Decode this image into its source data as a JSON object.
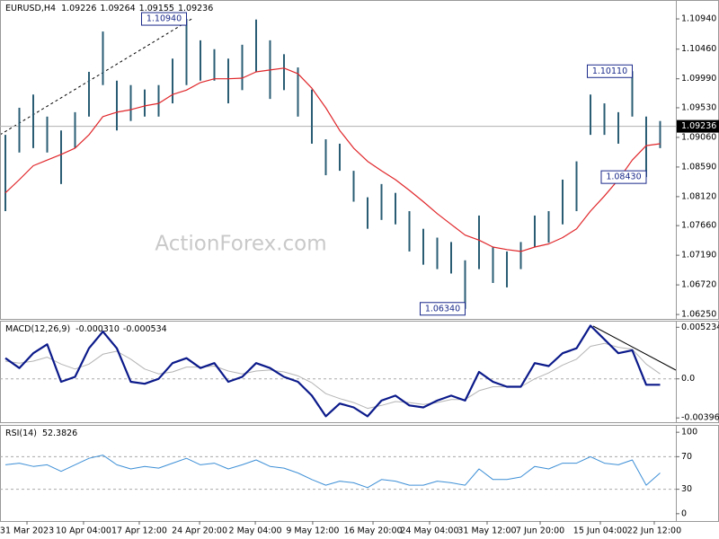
{
  "chart_data": [
    {
      "type": "ohlc",
      "title": "EURUSD,H4",
      "header_values": [
        1.09226,
        1.09264,
        1.09155,
        1.09236
      ],
      "current_price": 1.09236,
      "watermark": "ActionForex.com",
      "bar_color": "#2a5d74",
      "x": [
        0,
        1,
        2,
        3,
        4,
        5,
        6,
        7,
        8,
        9,
        10,
        11,
        12,
        13,
        14,
        15,
        16,
        17,
        18,
        19,
        20,
        21,
        22,
        23,
        24,
        25,
        26,
        27,
        28,
        29,
        30,
        31,
        32,
        33,
        34,
        35,
        36,
        37,
        38,
        39,
        40,
        41,
        42,
        43,
        44,
        45,
        46,
        47
      ],
      "highs": [
        1.091,
        1.0953,
        1.0974,
        1.0939,
        1.0917,
        1.0946,
        1.101,
        1.1074,
        1.0996,
        1.0989,
        1.0982,
        1.0989,
        1.1031,
        1.1094,
        1.106,
        1.1046,
        1.1031,
        1.1053,
        1.1093,
        1.106,
        1.1038,
        1.1017,
        1.0982,
        1.0903,
        1.0896,
        1.0853,
        1.0811,
        1.0832,
        1.0818,
        1.0789,
        1.0761,
        1.0747,
        1.074,
        1.0711,
        1.0782,
        1.0732,
        1.0725,
        1.074,
        1.0782,
        1.0789,
        1.0839,
        1.0868,
        1.0974,
        1.096,
        1.0946,
        1.1011,
        1.0939,
        1.0932
      ],
      "lows": [
        1.0789,
        1.0882,
        1.0889,
        1.0882,
        1.0832,
        1.0889,
        1.0939,
        1.0989,
        1.0917,
        1.0932,
        1.0939,
        1.0939,
        1.096,
        1.0989,
        1.0996,
        1.0996,
        1.096,
        1.0981,
        1.101,
        1.0967,
        1.0981,
        1.0939,
        1.0896,
        1.0846,
        1.0853,
        1.0804,
        1.0761,
        1.0775,
        1.0768,
        1.0725,
        1.0704,
        1.0697,
        1.069,
        1.0634,
        1.0697,
        1.0675,
        1.0668,
        1.0697,
        1.0732,
        1.0739,
        1.0768,
        1.0789,
        1.091,
        1.091,
        1.0896,
        1.0939,
        1.0843,
        1.0889
      ],
      "ma": {
        "color": "#e0262a",
        "values": [
          1.0818,
          1.0839,
          1.0861,
          1.087,
          1.0879,
          1.0889,
          1.091,
          1.0939,
          1.0946,
          1.095,
          1.0956,
          1.096,
          1.0974,
          1.0981,
          1.0993,
          1.0999,
          1.0999,
          1.1,
          1.101,
          1.1013,
          1.1016,
          1.1007,
          1.0984,
          1.0953,
          1.0917,
          1.0889,
          1.0868,
          1.0853,
          1.0839,
          1.0822,
          1.0804,
          1.0785,
          1.0768,
          1.0751,
          1.0743,
          1.0732,
          1.0728,
          1.0725,
          1.0732,
          1.0737,
          1.0747,
          1.0761,
          1.0789,
          1.0813,
          1.0839,
          1.087,
          1.0893,
          1.0896
        ]
      },
      "annotations": [
        {
          "x": 13,
          "value": 1.1094,
          "label": "1.10940"
        },
        {
          "x": 45,
          "value": 1.1011,
          "label": "1.10110"
        },
        {
          "x": 46,
          "value": 1.0843,
          "label": "1.08430"
        },
        {
          "x": 33,
          "value": 1.0634,
          "label": "1.06340"
        }
      ],
      "ylim": [
        1.0618,
        1.1124
      ],
      "yticks": [
        {
          "value": 1.1094,
          "label": "1.10940"
        },
        {
          "value": 1.1046,
          "label": "1.10460"
        },
        {
          "value": 1.0999,
          "label": "1.09990"
        },
        {
          "value": 1.0953,
          "label": "1.09530"
        },
        {
          "value": 1.0906,
          "label": "1.09060"
        },
        {
          "value": 1.0859,
          "label": "1.08590"
        },
        {
          "value": 1.0812,
          "label": "1.08120"
        },
        {
          "value": 1.0766,
          "label": "1.07660"
        },
        {
          "value": 1.0719,
          "label": "1.07190"
        },
        {
          "value": 1.0672,
          "label": "1.06720"
        },
        {
          "value": 1.0625,
          "label": "1.06250"
        }
      ]
    },
    {
      "type": "macd",
      "title": "MACD(12,26,9)",
      "header_values": [
        {
          "value": -0.00031,
          "label": "-0.000310"
        },
        -0.000534
      ],
      "x": [
        0,
        1,
        2,
        3,
        4,
        5,
        6,
        7,
        8,
        9,
        10,
        11,
        12,
        13,
        14,
        15,
        16,
        17,
        18,
        19,
        20,
        21,
        22,
        23,
        24,
        25,
        26,
        27,
        28,
        29,
        30,
        31,
        32,
        33,
        34,
        35,
        36,
        37,
        38,
        39,
        40,
        41,
        42,
        43,
        44,
        45,
        46,
        47
      ],
      "macd": {
        "color": "#0b1a8a",
        "values": [
          0.0021,
          0.0011,
          0.0026,
          0.0035,
          -0.0003,
          0.0002,
          0.0031,
          0.0048,
          0.0031,
          -0.0003,
          -0.0005,
          0,
          0.0016,
          0.0021,
          0.0011,
          0.0016,
          -0.0003,
          0.0002,
          0.0016,
          0.0011,
          0.0002,
          -0.0003,
          -0.0017,
          -0.0038,
          -0.0025,
          -0.0029,
          -0.0038,
          -0.0022,
          -0.0017,
          -0.0027,
          -0.0029,
          -0.0022,
          -0.0017,
          -0.0022,
          0.0007,
          -0.0003,
          -0.0008,
          -0.0008,
          0.0016,
          0.0013,
          0.0026,
          0.0031,
          0.0054,
          0.004,
          0.0026,
          0.0029,
          -0.0006,
          -0.0006
        ]
      },
      "signal": {
        "color": "#b4b4b4",
        "values": [
          0.0018,
          0.0016,
          0.0018,
          0.0022,
          0.0015,
          0.001,
          0.0015,
          0.0025,
          0.0028,
          0.002,
          0.001,
          0.0005,
          0.0007,
          0.0012,
          0.0012,
          0.0013,
          0.0008,
          0.0005,
          0.0008,
          0.0009,
          0.0007,
          0.0003,
          -0.0004,
          -0.0015,
          -0.002,
          -0.0024,
          -0.003,
          -0.0027,
          -0.0023,
          -0.0024,
          -0.0026,
          -0.0024,
          -0.0021,
          -0.0021,
          -0.0012,
          -0.0008,
          -0.0008,
          -0.0008,
          0,
          0.0006,
          0.0014,
          0.002,
          0.0033,
          0.0036,
          0.0032,
          0.003,
          0.0015,
          0.0005
        ]
      },
      "ylim": [
        -0.0044,
        0.0059
      ],
      "yticks": [
        0.005234,
        {
          "value": 0,
          "label": "0.0"
        },
        -0.003966
      ],
      "dashed_levels": [
        0
      ]
    },
    {
      "type": "rsi",
      "title": "RSI(14)",
      "header_values": [
        52.3826
      ],
      "x": [
        0,
        1,
        2,
        3,
        4,
        5,
        6,
        7,
        8,
        9,
        10,
        11,
        12,
        13,
        14,
        15,
        16,
        17,
        18,
        19,
        20,
        21,
        22,
        23,
        24,
        25,
        26,
        27,
        28,
        29,
        30,
        31,
        32,
        33,
        34,
        35,
        36,
        37,
        38,
        39,
        40,
        41,
        42,
        43,
        44,
        45,
        46,
        47
      ],
      "rsi": {
        "color": "#3d8fd6",
        "values": [
          60,
          62,
          58,
          60,
          52,
          60,
          68,
          72,
          60,
          55,
          58,
          56,
          62,
          68,
          60,
          62,
          55,
          60,
          66,
          58,
          56,
          50,
          42,
          35,
          40,
          38,
          32,
          42,
          40,
          35,
          35,
          40,
          38,
          35,
          55,
          42,
          42,
          45,
          58,
          55,
          62,
          62,
          70,
          62,
          60,
          66,
          35,
          50
        ]
      },
      "ylim": [
        -9,
        109
      ],
      "yticks": [
        100,
        70,
        30,
        0
      ],
      "dashed_levels": [
        70,
        30
      ],
      "xlim": [
        -0.387,
        48.13
      ],
      "xticks": [
        {
          "value": 1.55,
          "label": "31 Mar 2023"
        },
        {
          "value": 5.61,
          "label": "10 Apr 04:00"
        },
        {
          "value": 9.61,
          "label": "17 Apr 12:00"
        },
        {
          "value": 13.94,
          "label": "24 Apr 20:00"
        },
        {
          "value": 17.94,
          "label": "2 May 04:00"
        },
        {
          "value": 22.06,
          "label": "9 May 12:00"
        },
        {
          "value": 26.39,
          "label": "16 May 20:00"
        },
        {
          "value": 30.45,
          "label": "24 May 04:00"
        },
        {
          "value": 34.58,
          "label": "31 May 12:00"
        },
        {
          "value": 38.39,
          "label": "7 Jun 20:00"
        },
        {
          "value": 42.71,
          "label": "15 Jun 04:00"
        },
        {
          "value": 46.58,
          "label": "22 Jun 12:00"
        }
      ]
    }
  ]
}
